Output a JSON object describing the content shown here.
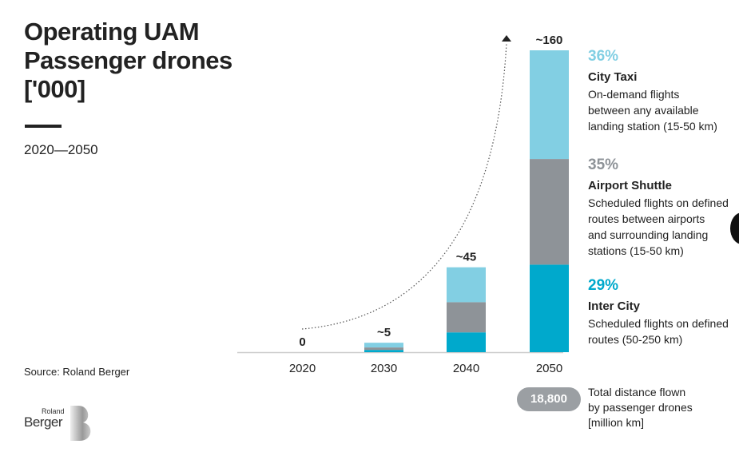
{
  "chart_data": {
    "type": "bar",
    "stacked": true,
    "title": "Operating UAM Passenger drones ['000]",
    "subtitle": "2020—2050",
    "categories": [
      "2020",
      "2030",
      "2040",
      "2050"
    ],
    "totals": [
      0,
      5,
      45,
      160
    ],
    "total_labels": [
      "0",
      "~5",
      "~45",
      "~160"
    ],
    "series": [
      {
        "name": "Inter City",
        "color": "#00a9cc",
        "values": [
          0,
          1.2,
          10.5,
          46.4
        ]
      },
      {
        "name": "Airport Shuttle",
        "color": "#8e9398",
        "values": [
          0,
          1.3,
          16,
          56
        ]
      },
      {
        "name": "City Taxi",
        "color": "#82cfe3",
        "values": [
          0,
          2.5,
          18.5,
          57.6
        ]
      }
    ],
    "ylim": [
      0,
      160
    ],
    "grid": false,
    "legend": "right"
  },
  "legend": [
    {
      "pct": "36%",
      "name": "City Taxi",
      "desc": [
        "On-demand flights",
        "between any available",
        "landing station (15-50 km)"
      ],
      "color": "#82cfe3"
    },
    {
      "pct": "35%",
      "name": "Airport Shuttle",
      "desc": [
        "Scheduled flights on defined",
        "routes between airports",
        "and surrounding landing",
        "stations (15-50 km)"
      ],
      "color": "#8e9398"
    },
    {
      "pct": "29%",
      "name": "Inter City",
      "desc": [
        "Scheduled flights on defined",
        "routes (50-250 km)"
      ],
      "color": "#00a9cc"
    }
  ],
  "title_lines": [
    "Operating UAM",
    "Passenger drones",
    "['000]"
  ],
  "years": "2020—2050",
  "source": "Source: Roland Berger",
  "distance": {
    "value": "18,800",
    "label": [
      "Total distance flown",
      "by passenger drones",
      "[million km]"
    ]
  },
  "logo": {
    "top": "Roland",
    "bottom": "Berger"
  }
}
